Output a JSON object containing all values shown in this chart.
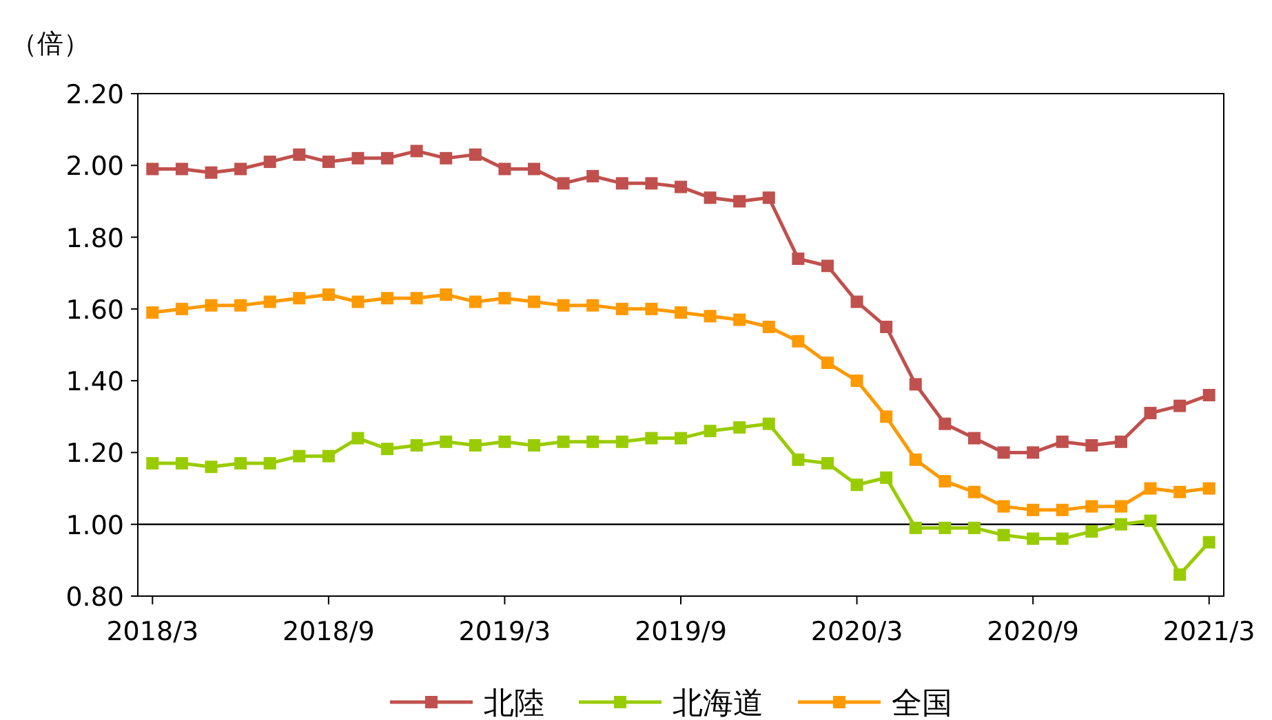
{
  "chart_data": {
    "type": "line",
    "ylabel": "（倍）",
    "categories": [
      "2018/3",
      null,
      null,
      null,
      null,
      null,
      "2018/9",
      null,
      null,
      null,
      null,
      null,
      "2019/3",
      null,
      null,
      null,
      null,
      null,
      "2019/9",
      null,
      null,
      null,
      null,
      null,
      "2020/3",
      null,
      null,
      null,
      null,
      null,
      "2020/9",
      null,
      null,
      null,
      null,
      null,
      "2021/3"
    ],
    "series": [
      {
        "name": "北陸",
        "color": "#c0504d",
        "values": [
          1.99,
          1.99,
          1.98,
          1.99,
          2.01,
          2.03,
          2.01,
          2.02,
          2.02,
          2.04,
          2.02,
          2.03,
          1.99,
          1.99,
          1.95,
          1.97,
          1.95,
          1.95,
          1.94,
          1.91,
          1.9,
          1.91,
          1.74,
          1.72,
          1.62,
          1.55,
          1.39,
          1.28,
          1.24,
          1.2,
          1.2,
          1.23,
          1.22,
          1.23,
          1.31,
          1.33,
          1.36
        ]
      },
      {
        "name": "北海道",
        "color": "#99cc00",
        "values": [
          1.17,
          1.17,
          1.16,
          1.17,
          1.17,
          1.19,
          1.19,
          1.24,
          1.21,
          1.22,
          1.23,
          1.22,
          1.23,
          1.22,
          1.23,
          1.23,
          1.23,
          1.24,
          1.24,
          1.26,
          1.27,
          1.28,
          1.18,
          1.17,
          1.11,
          1.13,
          0.99,
          0.99,
          0.99,
          0.97,
          0.96,
          0.96,
          0.98,
          1.0,
          1.01,
          0.86,
          0.95
        ]
      },
      {
        "name": "全国",
        "color": "#ff9900",
        "values": [
          1.59,
          1.6,
          1.61,
          1.61,
          1.62,
          1.63,
          1.64,
          1.62,
          1.63,
          1.63,
          1.64,
          1.62,
          1.63,
          1.62,
          1.61,
          1.61,
          1.6,
          1.6,
          1.59,
          1.58,
          1.57,
          1.55,
          1.51,
          1.45,
          1.4,
          1.3,
          1.18,
          1.12,
          1.09,
          1.05,
          1.04,
          1.04,
          1.05,
          1.05,
          1.1,
          1.09,
          1.1
        ]
      }
    ],
    "ylim": [
      0.8,
      2.2
    ],
    "yticks": [
      {
        "value": 0.8,
        "label": "0.80"
      },
      {
        "value": 1.0,
        "label": "1.00"
      },
      {
        "value": 1.2,
        "label": "1.20"
      },
      {
        "value": 1.4,
        "label": "1.40"
      },
      {
        "value": 1.6,
        "label": "1.60"
      },
      {
        "value": 1.8,
        "label": "1.80"
      },
      {
        "value": 2.0,
        "label": "2.00"
      },
      {
        "value": 2.2,
        "label": "2.20"
      }
    ],
    "ref_lines": [
      {
        "axis": "y",
        "value": 1.0,
        "color": "#000000"
      }
    ],
    "grid": false,
    "legend": "bottom",
    "marker": "square",
    "line_style": "solid"
  }
}
